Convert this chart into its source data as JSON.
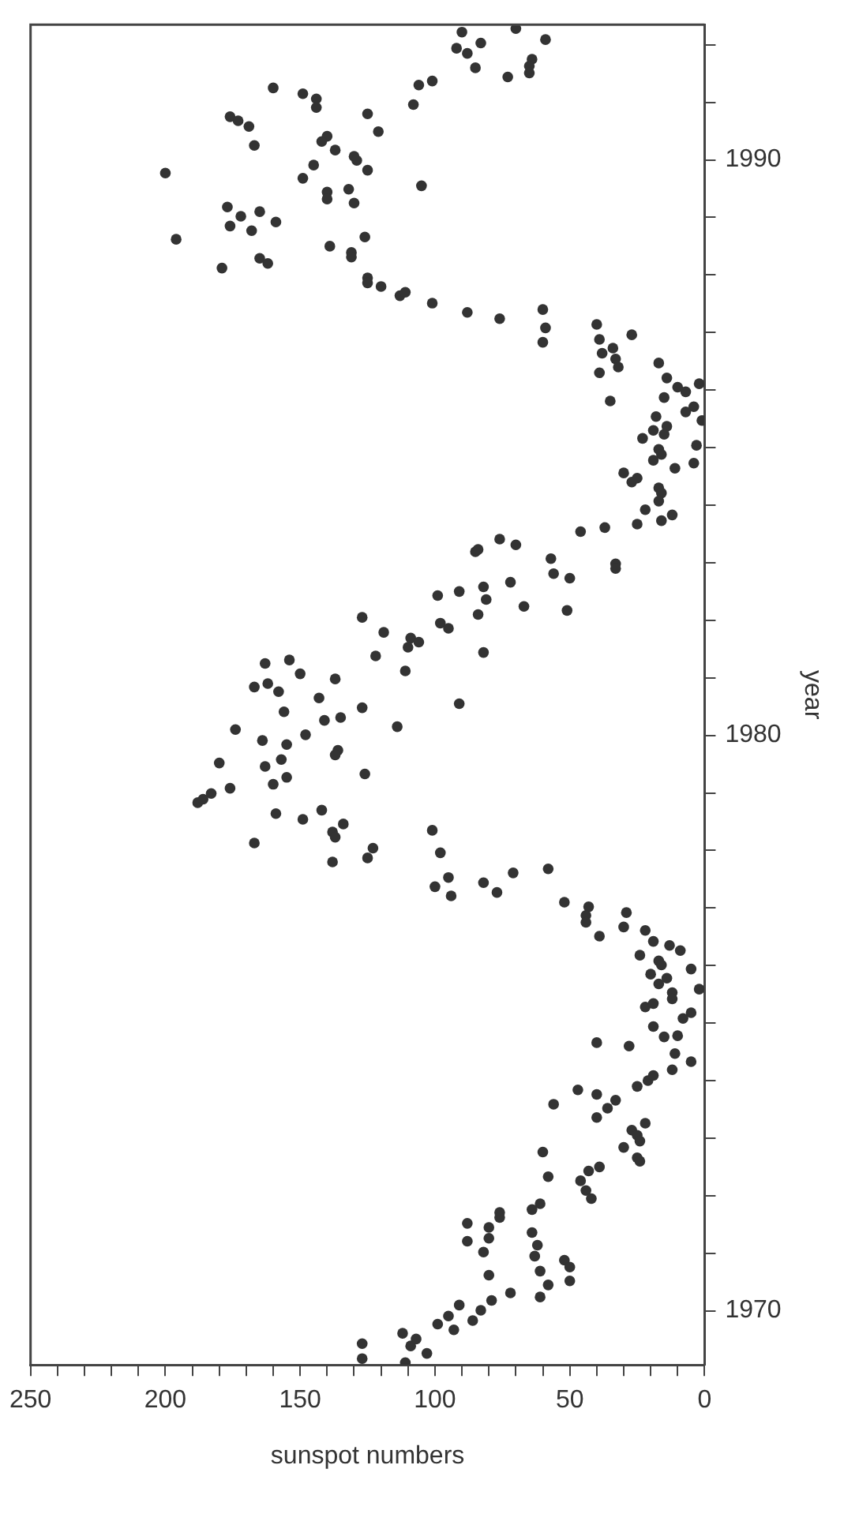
{
  "chart_data": {
    "type": "scatter",
    "xlabel": "sunspot numbers",
    "ylabel": "year",
    "ylim": [
      1969.06,
      1992.35
    ],
    "xlim": [
      250,
      0
    ],
    "yticks": [
      1970,
      {
        "value": 1971,
        "label": null
      },
      {
        "value": 1972,
        "label": null
      },
      {
        "value": 1973,
        "label": null
      },
      {
        "value": 1974,
        "label": null
      },
      {
        "value": 1975,
        "label": null
      },
      {
        "value": 1976,
        "label": null
      },
      {
        "value": 1977,
        "label": null
      },
      {
        "value": 1978,
        "label": null
      },
      {
        "value": 1979,
        "label": null
      },
      1980,
      {
        "value": 1981,
        "label": null
      },
      {
        "value": 1982,
        "label": null
      },
      {
        "value": 1983,
        "label": null
      },
      {
        "value": 1984,
        "label": null
      },
      {
        "value": 1985,
        "label": null
      },
      {
        "value": 1986,
        "label": null
      },
      {
        "value": 1987,
        "label": null
      },
      {
        "value": 1988,
        "label": null
      },
      {
        "value": 1989,
        "label": null
      },
      1990,
      {
        "value": 1991,
        "label": null
      },
      {
        "value": 1992,
        "label": null
      }
    ],
    "xticks": [
      250,
      {
        "value": 240,
        "label": null
      },
      {
        "value": 230,
        "label": null
      },
      {
        "value": 220,
        "label": null
      },
      {
        "value": 210,
        "label": null
      },
      200,
      {
        "value": 190,
        "label": null
      },
      {
        "value": 180,
        "label": null
      },
      {
        "value": 170,
        "label": null
      },
      {
        "value": 160,
        "label": null
      },
      150,
      {
        "value": 140,
        "label": null
      },
      {
        "value": 130,
        "label": null
      },
      {
        "value": 120,
        "label": null
      },
      {
        "value": 110,
        "label": null
      },
      100,
      {
        "value": 90,
        "label": null
      },
      {
        "value": 80,
        "label": null
      },
      {
        "value": 70,
        "label": null
      },
      {
        "value": 60,
        "label": null
      },
      50,
      {
        "value": 40,
        "label": null
      },
      {
        "value": 30,
        "label": null
      },
      {
        "value": 20,
        "label": null
      },
      {
        "value": 10,
        "label": null
      },
      0
    ],
    "grid": false,
    "legend": false,
    "marker": "circle",
    "series": [
      {
        "color": "#333333",
        "values": [
          1969.43,
          1969.17,
          1969.61,
          1969.1,
          1969.39,
          1969.51,
          1969.26,
          1969.77,
          1969.91,
          1969.67,
          1970.1,
          1969.83,
          1970.01,
          1970.18,
          1970.31,
          1970.24,
          1974.66,
          1974.6,
          1974.76,
          1974.78,
          1974.47,
          1974.19,
          1974.33,
          1973.9,
          1974.0,
          1974.09,
          1973.84,
          1973.76,
          1973.66,
          1973.52,
          1973.36,
          1973.59,
          1973.26,
          1973.14,
          1973.05,
          1972.95,
          1972.84,
          1972.66,
          1972.6,
          1972.76,
          1972.33,
          1972.5,
          1972.43,
          1972.26,
          1972.09,
          1971.95,
          1971.76,
          1971.86,
          1971.71,
          1971.62,
          1971.52,
          1971.45,
          1971.26,
          1971.21,
          1971.36,
          1971.14,
          1970.95,
          1971.02,
          1970.88,
          1970.76,
          1970.62,
          1970.69,
          1970.45,
          1970.52,
          1978.83,
          1978.89,
          1978.99,
          1979.08,
          1979.15,
          1978.13,
          1978.64,
          1978.54,
          1978.7,
          1978.46,
          1978.32,
          1978.23,
          1977.8,
          1977.87,
          1978.04,
          1978.35,
          1977.96,
          1977.53,
          1977.37,
          1977.21,
          1977.44,
          1977.27,
          1977.61,
          1977.68,
          1977.1,
          1977.02,
          1976.87,
          1976.75,
          1976.92,
          1976.67,
          1976.51,
          1976.61,
          1976.42,
          1976.35,
          1976.26,
          1976.18,
          1976.08,
          1976.01,
          1975.94,
          1975.85,
          1975.78,
          1975.68,
          1975.53,
          1975.42,
          1975.59,
          1975.28,
          1975.34,
          1975.18,
          1975.08,
          1974.94,
          1983.19,
          1983.23,
          1983.41,
          1983.31,
          1983.07,
          1982.81,
          1982.73,
          1982.98,
          1982.9,
          1982.43,
          1982.5,
          1982.58,
          1982.36,
          1982.66,
          1982.1,
          1982.24,
          1982.17,
          1981.95,
          1981.86,
          1981.44,
          1980.55,
          1982.05,
          1981.79,
          1981.38,
          1981.69,
          1981.62,
          1981.53,
          1981.12,
          1981.25,
          1981.31,
          1981.07,
          1980.98,
          1980.84,
          1980.9,
          1980.76,
          1980.65,
          1980.48,
          1980.41,
          1980.31,
          1980.26,
          1980.1,
          1980.01,
          1980.15,
          1979.91,
          1979.84,
          1979.74,
          1979.66,
          1979.52,
          1979.46,
          1979.58,
          1979.33,
          1979.27,
          1987.95,
          1987.86,
          1987.8,
          1987.64,
          1987.7,
          1987.51,
          1987.35,
          1987.24,
          1987.4,
          1987.08,
          1986.83,
          1987.14,
          1986.88,
          1986.64,
          1986.3,
          1986.73,
          1986.54,
          1986.4,
          1986.96,
          1985.81,
          1986.47,
          1986.21,
          1986.05,
          1985.97,
          1986.11,
          1985.87,
          1985.71,
          1985.62,
          1985.47,
          1985.54,
          1985.3,
          1985.37,
          1985.23,
          1985.16,
          1985.04,
          1984.97,
          1984.88,
          1984.78,
          1984.64,
          1984.73,
          1984.56,
          1984.4,
          1984.47,
          1984.3,
          1984.21,
          1984.07,
          1983.92,
          1983.73,
          1983.83,
          1983.67,
          1983.61,
          1983.54,
          1992.22,
          1992.28,
          1992.09,
          1991.94,
          1991.85,
          1992.03,
          1991.6,
          1991.75,
          1991.63,
          1991.51,
          1991.44,
          1991.37,
          1991.3,
          1990.96,
          1991.25,
          1991.15,
          1991.06,
          1990.91,
          1990.8,
          1990.49,
          1990.75,
          1990.68,
          1990.58,
          1990.25,
          1990.41,
          1990.32,
          1990.17,
          1990.06,
          1989.99,
          1989.82,
          1989.91,
          1989.68,
          1989.77,
          1989.55,
          1989.44,
          1989.32,
          1989.49,
          1989.25,
          1989.18,
          1989.1,
          1989.02,
          1988.92,
          1988.85,
          1988.77,
          1988.62,
          1988.66,
          1988.5,
          1988.39,
          1988.31,
          1988.29,
          1988.2,
          1988.12
        ],
        "x": [
          127,
          127,
          112,
          111,
          109,
          107,
          103,
          99,
          95,
          93,
          91,
          86,
          83,
          79,
          72,
          61,
          40,
          28,
          15,
          10,
          11,
          12,
          5,
          25,
          21,
          19,
          47,
          40,
          33,
          36,
          40,
          56,
          22,
          27,
          25,
          24,
          30,
          25,
          24,
          60,
          58,
          39,
          43,
          46,
          44,
          42,
          64,
          61,
          76,
          76,
          88,
          80,
          80,
          88,
          64,
          62,
          63,
          82,
          52,
          50,
          80,
          61,
          58,
          50,
          188,
          186,
          183,
          176,
          160,
          167,
          159,
          149,
          142,
          134,
          138,
          137,
          138,
          125,
          123,
          101,
          98,
          95,
          100,
          94,
          82,
          77,
          71,
          58,
          52,
          43,
          44,
          44,
          29,
          30,
          39,
          22,
          19,
          13,
          9,
          24,
          17,
          16,
          5,
          20,
          14,
          17,
          12,
          12,
          2,
          22,
          19,
          5,
          8,
          19,
          85,
          84,
          76,
          70,
          57,
          56,
          50,
          33,
          33,
          99,
          91,
          82,
          81,
          72,
          84,
          67,
          51,
          98,
          95,
          82,
          91,
          127,
          119,
          122,
          109,
          106,
          110,
          111,
          163,
          154,
          150,
          137,
          167,
          162,
          158,
          143,
          127,
          156,
          135,
          141,
          174,
          148,
          114,
          164,
          155,
          136,
          137,
          180,
          163,
          157,
          126,
          155,
          125,
          125,
          120,
          113,
          111,
          101,
          88,
          76,
          60,
          59,
          60,
          40,
          39,
          38,
          39,
          34,
          33,
          32,
          27,
          35,
          17,
          14,
          10,
          7,
          2,
          15,
          4,
          7,
          1,
          18,
          19,
          14,
          15,
          23,
          3,
          17,
          16,
          19,
          11,
          4,
          30,
          27,
          25,
          17,
          16,
          17,
          22,
          16,
          12,
          25,
          37,
          46,
          90,
          70,
          59,
          92,
          88,
          83,
          85,
          64,
          65,
          65,
          73,
          101,
          106,
          108,
          160,
          149,
          144,
          144,
          125,
          121,
          176,
          173,
          169,
          167,
          140,
          142,
          137,
          130,
          129,
          125,
          145,
          149,
          200,
          105,
          140,
          140,
          132,
          130,
          177,
          165,
          172,
          159,
          176,
          168,
          196,
          126,
          139,
          131,
          131,
          165,
          162,
          179
        ]
      }
    ]
  }
}
